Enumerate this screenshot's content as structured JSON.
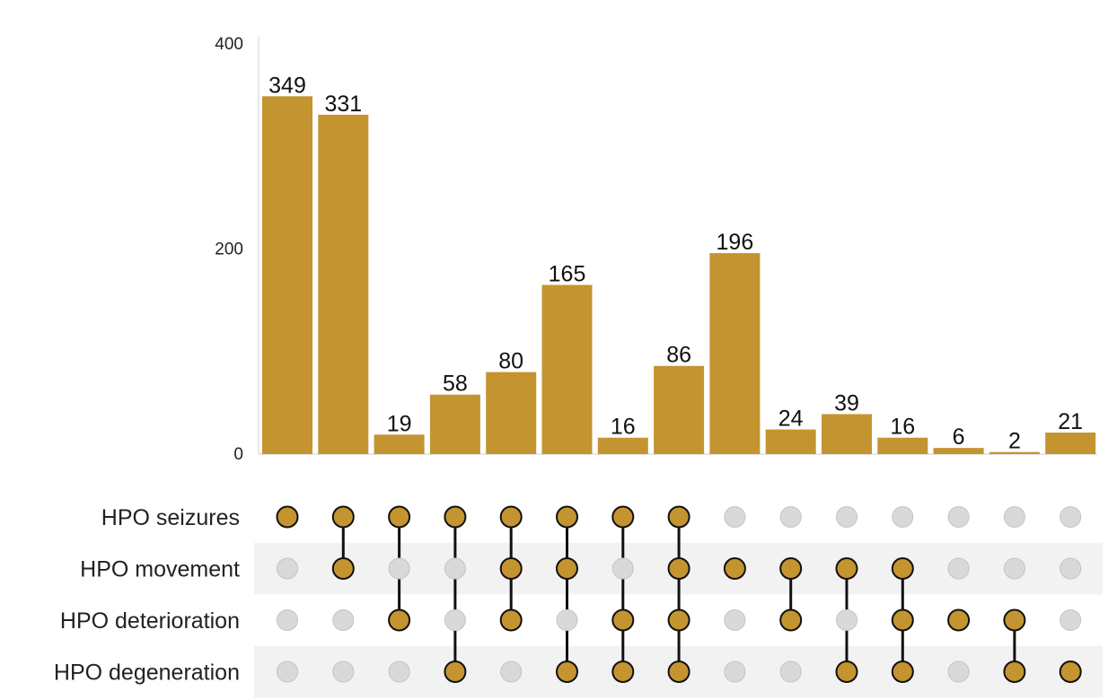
{
  "chart_data": {
    "type": "bar",
    "subtype": "upset",
    "title": "",
    "xlabel": "",
    "ylabel": "",
    "ylim": [
      0,
      400
    ],
    "yticks": [
      0,
      200,
      400
    ],
    "grid": false,
    "legend": "none",
    "colors": {
      "bar": "#c49430",
      "dot_active": "#c49430",
      "dot_inactive": "#d9d9d9",
      "connector": "#111111",
      "row_band": "#f2f2f2"
    },
    "sets": [
      "HPO seizures",
      "HPO movement",
      "HPO deterioration",
      "HPO degeneration"
    ],
    "values": [
      349,
      331,
      19,
      58,
      80,
      165,
      16,
      86,
      196,
      24,
      39,
      16,
      6,
      2,
      21
    ],
    "membership": [
      [
        1,
        0,
        0,
        0
      ],
      [
        1,
        1,
        0,
        0
      ],
      [
        1,
        0,
        1,
        0
      ],
      [
        1,
        0,
        0,
        1
      ],
      [
        1,
        1,
        1,
        0
      ],
      [
        1,
        1,
        0,
        1
      ],
      [
        1,
        0,
        1,
        1
      ],
      [
        1,
        1,
        1,
        1
      ],
      [
        0,
        1,
        0,
        0
      ],
      [
        0,
        1,
        1,
        0
      ],
      [
        0,
        1,
        0,
        1
      ],
      [
        0,
        1,
        1,
        1
      ],
      [
        0,
        0,
        1,
        0
      ],
      [
        0,
        0,
        1,
        1
      ],
      [
        0,
        0,
        0,
        1
      ]
    ]
  }
}
